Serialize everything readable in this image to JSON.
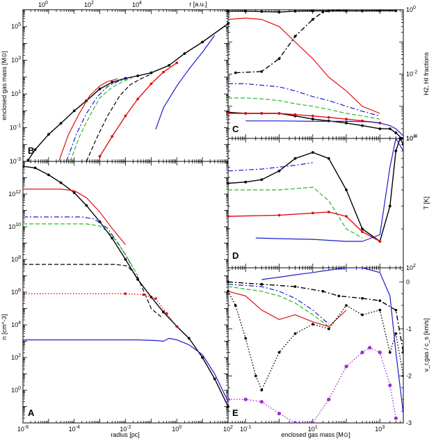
{
  "chart_data": [
    {
      "id": "B",
      "type": "line",
      "panel_label": "B",
      "xlabel": "",
      "ylabel": "enclosed gas mass [M⊙]",
      "top_axis_label": "r [a.u.]",
      "top_tick_labels": [
        "10^0",
        "10^2",
        "10^4"
      ],
      "xscale": "log",
      "yscale": "log",
      "xlim": [
        1e-06,
        100
      ],
      "ylim": [
        0.001,
        1000000
      ],
      "y_tick_labels": [
        "10^-3",
        "10^-1",
        "10^1",
        "10^3",
        "10^5"
      ],
      "series": [
        {
          "color": "#000000",
          "style": "solid",
          "marker": "dot",
          "x": [
            1.6e-06,
            3e-06,
            1e-05,
            3e-05,
            0.0001,
            0.0003,
            0.001,
            0.003,
            0.01,
            0.03,
            0.1,
            0.5,
            2,
            10,
            100
          ],
          "y": [
            0.0012,
            0.005,
            0.04,
            0.18,
            1.0,
            4,
            20,
            50,
            85,
            120,
            180,
            500,
            2500,
            12000,
            150000
          ]
        },
        {
          "color": "#e01010",
          "style": "solid",
          "marker": "none",
          "x": [
            2.5e-05,
            6e-05,
            0.00015,
            0.0004,
            0.001,
            0.002,
            0.005
          ],
          "y": [
            0.001,
            0.04,
            0.6,
            8,
            30,
            55,
            80
          ]
        },
        {
          "color": "#1a1acc",
          "style": "dashdot",
          "marker": "none",
          "x": [
            5e-05,
            0.00012,
            0.0003,
            0.0008,
            0.002,
            0.005,
            0.012
          ],
          "y": [
            0.001,
            0.04,
            0.7,
            7,
            28,
            55,
            85
          ]
        },
        {
          "color": "#22bb22",
          "style": "dashed",
          "marker": "none",
          "x": [
            7e-05,
            0.00016,
            0.0004,
            0.001,
            0.003,
            0.008,
            0.018
          ],
          "y": [
            0.001,
            0.03,
            0.5,
            6,
            25,
            55,
            90
          ]
        },
        {
          "color": "#000000",
          "style": "dashed",
          "marker": "none",
          "x": [
            0.0003,
            0.0008,
            0.002,
            0.006,
            0.015,
            0.04,
            0.1
          ],
          "y": [
            0.001,
            0.03,
            0.5,
            8,
            35,
            80,
            150
          ]
        },
        {
          "color": "#e01010",
          "style": "solid",
          "marker": "dot",
          "x": [
            0.001,
            0.003,
            0.01,
            0.03,
            0.1,
            0.3,
            1
          ],
          "y": [
            0.002,
            0.03,
            0.5,
            5,
            40,
            200,
            700
          ]
        },
        {
          "color": "#1a1acc",
          "style": "solid",
          "marker": "none",
          "x": [
            0.15,
            0.3,
            1,
            3,
            10,
            30
          ],
          "y": [
            0.08,
            1.5,
            30,
            300,
            3000,
            30000
          ]
        }
      ]
    },
    {
      "id": "A",
      "type": "line",
      "panel_label": "A",
      "xlabel": "radius [pc]",
      "ylabel": "n [cm^-3]",
      "xscale": "log",
      "yscale": "log",
      "xlim": [
        1e-06,
        100
      ],
      "ylim": [
        0.01,
        100000000000000.0
      ],
      "x_tick_labels": [
        "10^-6",
        "10^-4",
        "10^-2",
        "10^0",
        "10^2"
      ],
      "y_tick_labels": [
        "10^0",
        "10^2",
        "10^4",
        "10^6",
        "10^8",
        "10^10",
        "10^12"
      ],
      "series": [
        {
          "color": "#000000",
          "style": "solid",
          "marker": "dot",
          "x": [
            1e-06,
            3e-06,
            1e-05,
            3e-05,
            0.0001,
            0.0003,
            0.001,
            0.003,
            0.01,
            0.03,
            0.1,
            0.3,
            1,
            3,
            10,
            30,
            100
          ],
          "y": [
            50000000000000.0,
            40000000000000.0,
            15000000000000.0,
            5000000000000.0,
            1200000000000.0,
            200000000000.0,
            20000000000.0,
            2000000000.0,
            100000000.0,
            6000000.0,
            500000.0,
            60000.0,
            8000.0,
            1500.0,
            100.0,
            5,
            0.1
          ]
        },
        {
          "color": "#e01010",
          "style": "solid",
          "marker": "none",
          "x": [
            1e-06,
            3e-05,
            0.0001,
            0.0003,
            0.001,
            0.003,
            0.01
          ],
          "y": [
            2000000000000.0,
            2000000000000.0,
            1600000000000.0,
            600000000000.0,
            80000000000.0,
            8000000000.0,
            800000000.0
          ]
        },
        {
          "color": "#1a1acc",
          "style": "dashdot",
          "marker": "none",
          "x": [
            1e-06,
            0.0002,
            0.0006,
            0.002,
            0.006,
            0.02
          ],
          "y": [
            40000000000.0,
            40000000000.0,
            30000000000.0,
            8000000000.0,
            700000000.0,
            30000000.0
          ]
        },
        {
          "color": "#22bb22",
          "style": "dashed",
          "marker": "none",
          "x": [
            1e-06,
            0.0003,
            0.001,
            0.003,
            0.01,
            0.03
          ],
          "y": [
            15000000000.0,
            15000000000.0,
            11000000000.0,
            3000000000.0,
            200000000.0,
            10000000.0
          ]
        },
        {
          "color": "#000000",
          "style": "dashed",
          "marker": "none",
          "x": [
            1e-06,
            0.004,
            0.012,
            0.03,
            0.1,
            0.25
          ],
          "y": [
            50000000.0,
            50000000.0,
            40000000.0,
            8000000.0,
            100000.0,
            30000.0
          ]
        },
        {
          "color": "#e01010",
          "style": "dotted",
          "marker": "dot",
          "x": [
            1e-06,
            0.01,
            0.05,
            0.15,
            0.4,
            1
          ],
          "y": [
            800000.0,
            800000.0,
            700000.0,
            400000.0,
            50000.0,
            8000.0
          ]
        },
        {
          "color": "#1a1acc",
          "style": "solid",
          "marker": "none",
          "x": [
            1e-06,
            0.03,
            0.15,
            0.3,
            0.5,
            1,
            3,
            10,
            30,
            100
          ],
          "y": [
            1200.0,
            1200.0,
            1100.0,
            1000.0,
            1500.0,
            1200.0,
            600.0,
            150.0,
            10,
            0.2
          ]
        }
      ]
    },
    {
      "id": "C",
      "type": "line",
      "panel_label": "C",
      "ylabel": "H2, HI fractions",
      "xscale": "log",
      "yscale": "log",
      "xlim": [
        0.03,
        5000
      ],
      "ylim": [
        0.0001,
        1
      ],
      "y_tick_labels": [
        "10^-4",
        "10^-2",
        "10^0"
      ],
      "series": [
        {
          "color": "#000000",
          "style": "solid",
          "marker": "dot",
          "x": [
            0.03,
            0.1,
            0.3,
            1,
            3,
            10,
            30,
            100,
            300,
            1000,
            3000
          ],
          "y": [
            0.9,
            0.9,
            0.88,
            0.85,
            0.9,
            0.92,
            0.92,
            0.92,
            0.92,
            0.93,
            0.93
          ]
        },
        {
          "color": "#000000",
          "style": "solid",
          "marker": "dot",
          "x": [
            0.03,
            0.1,
            0.3,
            1,
            3,
            10,
            30,
            100,
            300,
            1000,
            2000,
            3000,
            4500
          ],
          "y": [
            0.00065,
            0.0006,
            0.0006,
            0.0006,
            0.0005,
            0.0004,
            0.00035,
            0.0003,
            0.00025,
            0.0002,
            0.0002,
            0.00015,
            0.0001
          ]
        },
        {
          "color": "#000000",
          "style": "dashdot",
          "marker": "dot",
          "x": [
            0.05,
            0.3,
            1,
            3,
            10,
            20,
            40,
            100
          ],
          "y": [
            0.011,
            0.012,
            0.03,
            0.15,
            0.5,
            0.85,
            0.95,
            0.95
          ]
        },
        {
          "color": "#e01010",
          "style": "solid",
          "marker": "none",
          "x": [
            0.03,
            0.1,
            0.3,
            1,
            3,
            10,
            30,
            100,
            300,
            1000
          ],
          "y": [
            0.5,
            0.55,
            0.5,
            0.3,
            0.1,
            0.03,
            0.008,
            0.003,
            0.001,
            0.0006
          ]
        },
        {
          "color": "#1a1acc",
          "style": "dashdot",
          "marker": "none",
          "x": [
            0.03,
            0.1,
            0.3,
            1,
            3,
            10,
            30,
            100,
            300,
            1000
          ],
          "y": [
            0.005,
            0.005,
            0.0045,
            0.004,
            0.003,
            0.002,
            0.0015,
            0.001,
            0.0007,
            0.0005
          ]
        },
        {
          "color": "#22bb22",
          "style": "dashed",
          "marker": "none",
          "x": [
            0.03,
            0.1,
            0.3,
            1,
            3,
            10,
            30,
            100,
            300,
            1000
          ],
          "y": [
            0.0018,
            0.0018,
            0.0017,
            0.0015,
            0.0012,
            0.001,
            0.0008,
            0.0006,
            0.0005,
            0.0004
          ]
        },
        {
          "color": "#e01010",
          "style": "solid",
          "marker": "dot",
          "x": [
            0.03,
            0.1,
            0.3,
            1,
            3,
            10,
            30,
            100,
            300,
            1000
          ],
          "y": [
            0.0006,
            0.0006,
            0.0006,
            0.0006,
            0.00055,
            0.0005,
            0.00045,
            0.0004,
            0.00035,
            0.0003
          ]
        },
        {
          "color": "#1a1acc",
          "style": "solid",
          "marker": "none",
          "x": [
            0.1,
            1,
            10,
            100,
            500,
            1000,
            2000,
            3000,
            5000
          ],
          "y": [
            0.00035,
            0.00035,
            0.00034,
            0.00034,
            0.00033,
            0.0003,
            0.00025,
            0.0002,
            0.00012
          ]
        }
      ]
    },
    {
      "id": "D",
      "type": "line",
      "panel_label": "D",
      "ylabel": "T [K]",
      "xscale": "log",
      "yscale": "log",
      "xlim": [
        0.03,
        5000
      ],
      "ylim": [
        100,
        1000
      ],
      "y_tick_labels": [
        "10^2",
        "10^3"
      ],
      "series": [
        {
          "color": "#000000",
          "style": "solid",
          "marker": "dot",
          "x": [
            0.03,
            0.1,
            0.3,
            1,
            3,
            10,
            30,
            100,
            300,
            1000,
            2000,
            3000,
            4000,
            5000
          ],
          "y": [
            450,
            460,
            480,
            560,
            700,
            780,
            700,
            400,
            200,
            160,
            300,
            800,
            1000,
            900
          ]
        },
        {
          "color": "#1a1acc",
          "style": "dashdot",
          "marker": "none",
          "x": [
            0.03,
            0.3,
            1,
            3,
            10
          ],
          "y": [
            560,
            580,
            600,
            620,
            650
          ]
        },
        {
          "color": "#22bb22",
          "style": "dashed",
          "marker": "none",
          "x": [
            0.03,
            1,
            10,
            30,
            100,
            300
          ],
          "y": [
            400,
            400,
            420,
            330,
            200,
            170
          ]
        },
        {
          "color": "#e01010",
          "style": "solid",
          "marker": "dot",
          "x": [
            0.03,
            1,
            10,
            30,
            100,
            300,
            1000
          ],
          "y": [
            250,
            255,
            265,
            270,
            250,
            190,
            160
          ]
        },
        {
          "color": "#1a1acc",
          "style": "solid",
          "marker": "none",
          "x": [
            0.2,
            1,
            10,
            100,
            300,
            1000,
            2000,
            3000,
            5000
          ],
          "y": [
            170,
            168,
            166,
            160,
            160,
            180,
            600,
            1000,
            800
          ]
        }
      ]
    },
    {
      "id": "E",
      "type": "line",
      "panel_label": "E",
      "xlabel": "enclosed gas mass [M⊙]",
      "ylabel": "v_r,gas / c_s [km/s]",
      "xscale": "log",
      "yscale": "linear",
      "xlim": [
        0.03,
        5000
      ],
      "ylim": [
        -3,
        0.3
      ],
      "x_tick_labels": [
        "10^-1",
        "10^1",
        "10^3"
      ],
      "y_tick_labels": [
        "0",
        "-1",
        "-2",
        "-3"
      ],
      "series": [
        {
          "color": "#1a1acc",
          "style": "solid",
          "marker": "none",
          "x": [
            0.3,
            1,
            3,
            10,
            30,
            100,
            300,
            1000,
            2000,
            3000,
            5000
          ],
          "y": [
            0.05,
            0.1,
            0.15,
            0.2,
            0.25,
            0.3,
            0.3,
            0.2,
            -0.3,
            -1.5,
            -2.8
          ]
        },
        {
          "color": "#000000",
          "style": "dashdot",
          "marker": "dot",
          "x": [
            0.03,
            0.3,
            3,
            20,
            60,
            300,
            1000,
            3000,
            5000
          ],
          "y": [
            0.0,
            -0.05,
            -0.1,
            -0.2,
            -0.3,
            -0.35,
            -0.4,
            -0.6,
            -1.5
          ]
        },
        {
          "color": "#1a1acc",
          "style": "dashdot",
          "marker": "none",
          "x": [
            0.03,
            0.3,
            1,
            3,
            10,
            30
          ],
          "y": [
            -0.05,
            -0.1,
            -0.2,
            -0.35,
            -0.6,
            -0.9
          ]
        },
        {
          "color": "#22bb22",
          "style": "dashed",
          "marker": "none",
          "x": [
            0.03,
            0.3,
            1,
            3,
            10,
            30
          ],
          "y": [
            -0.1,
            -0.2,
            -0.3,
            -0.45,
            -0.7,
            -0.95
          ]
        },
        {
          "color": "#e01010",
          "style": "solid",
          "marker": "none",
          "x": [
            0.03,
            0.1,
            0.3,
            1,
            3,
            10,
            30,
            100
          ],
          "y": [
            -0.2,
            -0.3,
            -0.6,
            -0.8,
            -0.7,
            -0.85,
            -0.95,
            -0.6
          ]
        },
        {
          "color": "#000000",
          "style": "dotted",
          "marker": "dot",
          "x": [
            0.03,
            0.05,
            0.1,
            0.2,
            0.3,
            1,
            3,
            10,
            30,
            100,
            300,
            1000,
            2000,
            3000,
            5000
          ],
          "y": [
            -0.2,
            -0.5,
            -1.2,
            -2.0,
            -2.3,
            -1.5,
            -1.1,
            -0.9,
            -1.0,
            -0.5,
            -0.7,
            -0.6,
            -1.5,
            -1.1,
            -2.0
          ]
        },
        {
          "color": "#a02ad8",
          "style": "dotted",
          "marker": "dot",
          "x": [
            0.03,
            0.1,
            0.3,
            1,
            3,
            10,
            30,
            100,
            300,
            500,
            1000,
            2000,
            3000
          ],
          "y": [
            -2.5,
            -2.5,
            -2.55,
            -2.8,
            -3.0,
            -3.0,
            -2.5,
            -1.8,
            -1.5,
            -1.4,
            -1.5,
            -2.2,
            -2.9
          ]
        }
      ]
    }
  ]
}
